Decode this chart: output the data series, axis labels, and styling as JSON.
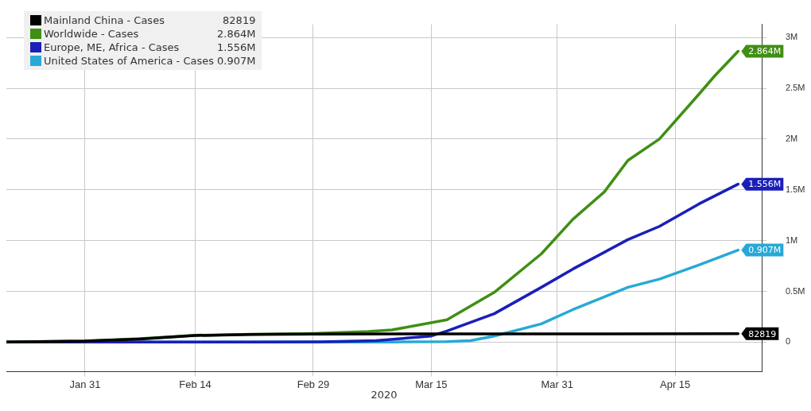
{
  "chart_data": {
    "type": "line",
    "xlabel": "2020",
    "xlim": [
      "2020-01-21",
      "2020-04-26"
    ],
    "xticks": [
      {
        "value": "2020-01-31",
        "label": "Jan 31"
      },
      {
        "value": "2020-02-14",
        "label": "Feb 14"
      },
      {
        "value": "2020-02-29",
        "label": "Feb 29"
      },
      {
        "value": "2020-03-15",
        "label": "Mar 15"
      },
      {
        "value": "2020-03-31",
        "label": "Mar 31"
      },
      {
        "value": "2020-04-15",
        "label": "Apr 15"
      }
    ],
    "ylim": [
      -290000,
      3130000
    ],
    "yticks": [
      {
        "value": 0,
        "label": "0"
      },
      {
        "value": 500000,
        "label": "0.5M"
      },
      {
        "value": 1000000,
        "label": "1M"
      },
      {
        "value": 1500000,
        "label": "1.5M"
      },
      {
        "value": 2000000,
        "label": "2M"
      },
      {
        "value": 2500000,
        "label": "2.5M"
      },
      {
        "value": 3000000,
        "label": "3M"
      }
    ],
    "grid": true,
    "legend": "top left",
    "series": [
      {
        "name": "Mainland China - Cases",
        "color": "#000000",
        "x": [
          "2020-01-21",
          "2020-01-31",
          "2020-02-07",
          "2020-02-14",
          "2020-02-21",
          "2020-02-29",
          "2020-03-15",
          "2020-04-23"
        ],
        "values": [
          0,
          10000,
          31000,
          65000,
          76000,
          79000,
          81000,
          82819
        ],
        "value_labels": [
          null,
          null,
          null,
          null,
          null,
          null,
          null,
          "82819"
        ]
      },
      {
        "name": "Worldwide - Cases",
        "color": "#3f8f14",
        "x": [
          "2020-01-21",
          "2020-01-31",
          "2020-02-07",
          "2020-02-14",
          "2020-02-21",
          "2020-02-29",
          "2020-03-07",
          "2020-03-10",
          "2020-03-17",
          "2020-03-23",
          "2020-03-29",
          "2020-04-02",
          "2020-04-06",
          "2020-04-09",
          "2020-04-13",
          "2020-04-18",
          "2020-04-20",
          "2020-04-23"
        ],
        "values": [
          0,
          10000,
          35000,
          67000,
          77000,
          86000,
          105000,
          120000,
          220000,
          490000,
          870000,
          1210000,
          1480000,
          1790000,
          2000000,
          2440000,
          2620000,
          2864000
        ],
        "value_labels": [
          null,
          null,
          null,
          null,
          null,
          null,
          null,
          null,
          null,
          null,
          null,
          null,
          null,
          null,
          null,
          null,
          null,
          "2.864M"
        ]
      },
      {
        "name": "Europe, ME, Africa - Cases",
        "color": "#1a1fb8",
        "x": [
          "2020-01-21",
          "2020-02-21",
          "2020-03-01",
          "2020-03-08",
          "2020-03-15",
          "2020-03-17",
          "2020-03-23",
          "2020-03-29",
          "2020-04-02",
          "2020-04-09",
          "2020-04-13",
          "2020-04-18",
          "2020-04-23"
        ],
        "values": [
          0,
          0,
          3000,
          15000,
          60000,
          110000,
          280000,
          540000,
          720000,
          1010000,
          1140000,
          1360000,
          1556000
        ],
        "value_labels": [
          null,
          null,
          null,
          null,
          null,
          null,
          null,
          null,
          null,
          null,
          null,
          null,
          "1.556M"
        ]
      },
      {
        "name": "United States of America - Cases",
        "color": "#27a9d6",
        "x": [
          "2020-01-21",
          "2020-03-10",
          "2020-03-17",
          "2020-03-20",
          "2020-03-23",
          "2020-03-29",
          "2020-04-02",
          "2020-04-09",
          "2020-04-13",
          "2020-04-18",
          "2020-04-23"
        ],
        "values": [
          0,
          1000,
          5000,
          15000,
          60000,
          180000,
          320000,
          540000,
          620000,
          760000,
          907000
        ],
        "value_labels": [
          null,
          null,
          null,
          null,
          null,
          null,
          null,
          null,
          null,
          null,
          "0.907M"
        ]
      }
    ]
  }
}
